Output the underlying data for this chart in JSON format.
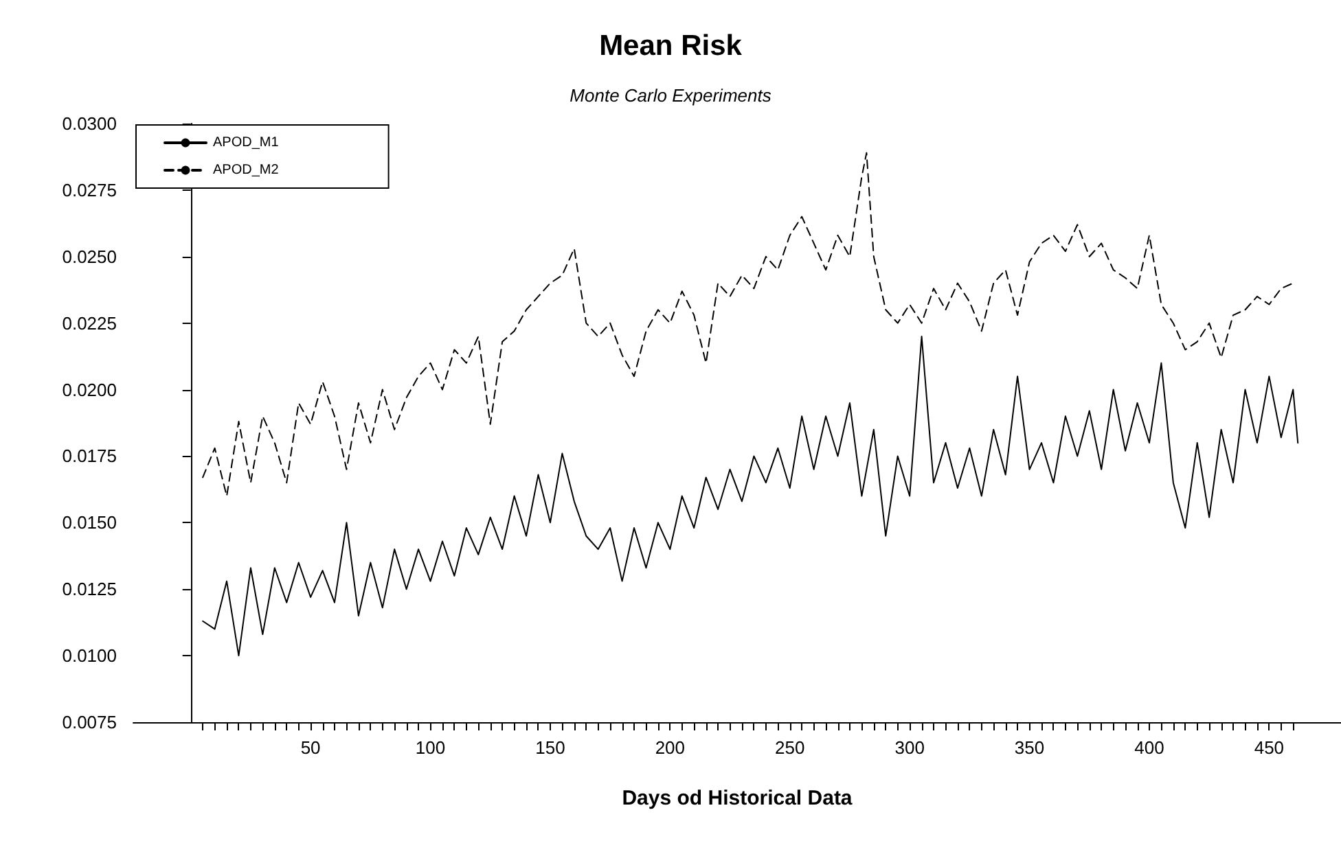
{
  "chart_data": {
    "type": "line",
    "title": "Mean Risk",
    "subtitle": "Monte Carlo Experiments",
    "xlabel": "Days od Historical Data",
    "xlim": [
      -24,
      480
    ],
    "ylim": [
      0.0075,
      0.03
    ],
    "yticks": [
      {
        "value": 0.0075,
        "label": "0.0075"
      },
      {
        "value": 0.01,
        "label": "0.0100"
      },
      {
        "value": 0.0125,
        "label": "0.0125"
      },
      {
        "value": 0.015,
        "label": "0.0150"
      },
      {
        "value": 0.0175,
        "label": "0.0175"
      },
      {
        "value": 0.02,
        "label": "0.0200"
      },
      {
        "value": 0.0225,
        "label": "0.0225"
      },
      {
        "value": 0.025,
        "label": "0.0250"
      },
      {
        "value": 0.0275,
        "label": "0.0275"
      },
      {
        "value": 0.03,
        "label": "0.0300"
      }
    ],
    "xticks": [
      {
        "value": 5,
        "label": null
      },
      {
        "value": 10,
        "label": null
      },
      {
        "value": 15,
        "label": null
      },
      {
        "value": 20,
        "label": null
      },
      {
        "value": 25,
        "label": null
      },
      {
        "value": 30,
        "label": null
      },
      {
        "value": 35,
        "label": null
      },
      {
        "value": 40,
        "label": null
      },
      {
        "value": 45,
        "label": null
      },
      50,
      {
        "value": 55,
        "label": null
      },
      {
        "value": 60,
        "label": null
      },
      {
        "value": 65,
        "label": null
      },
      {
        "value": 70,
        "label": null
      },
      {
        "value": 75,
        "label": null
      },
      {
        "value": 80,
        "label": null
      },
      {
        "value": 85,
        "label": null
      },
      {
        "value": 90,
        "label": null
      },
      {
        "value": 95,
        "label": null
      },
      100,
      {
        "value": 105,
        "label": null
      },
      {
        "value": 110,
        "label": null
      },
      {
        "value": 115,
        "label": null
      },
      {
        "value": 120,
        "label": null
      },
      {
        "value": 125,
        "label": null
      },
      {
        "value": 130,
        "label": null
      },
      {
        "value": 135,
        "label": null
      },
      {
        "value": 140,
        "label": null
      },
      {
        "value": 145,
        "label": null
      },
      150,
      {
        "value": 155,
        "label": null
      },
      {
        "value": 160,
        "label": null
      },
      {
        "value": 165,
        "label": null
      },
      {
        "value": 170,
        "label": null
      },
      {
        "value": 175,
        "label": null
      },
      {
        "value": 180,
        "label": null
      },
      {
        "value": 185,
        "label": null
      },
      {
        "value": 190,
        "label": null
      },
      {
        "value": 195,
        "label": null
      },
      200,
      {
        "value": 205,
        "label": null
      },
      {
        "value": 210,
        "label": null
      },
      {
        "value": 215,
        "label": null
      },
      {
        "value": 220,
        "label": null
      },
      {
        "value": 225,
        "label": null
      },
      {
        "value": 230,
        "label": null
      },
      {
        "value": 235,
        "label": null
      },
      {
        "value": 240,
        "label": null
      },
      {
        "value": 245,
        "label": null
      },
      250,
      {
        "value": 255,
        "label": null
      },
      {
        "value": 260,
        "label": null
      },
      {
        "value": 265,
        "label": null
      },
      {
        "value": 270,
        "label": null
      },
      {
        "value": 275,
        "label": null
      },
      {
        "value": 280,
        "label": null
      },
      {
        "value": 285,
        "label": null
      },
      {
        "value": 290,
        "label": null
      },
      {
        "value": 295,
        "label": null
      },
      300,
      {
        "value": 305,
        "label": null
      },
      {
        "value": 310,
        "label": null
      },
      {
        "value": 315,
        "label": null
      },
      {
        "value": 320,
        "label": null
      },
      {
        "value": 325,
        "label": null
      },
      {
        "value": 330,
        "label": null
      },
      {
        "value": 335,
        "label": null
      },
      {
        "value": 340,
        "label": null
      },
      {
        "value": 345,
        "label": null
      },
      350,
      {
        "value": 355,
        "label": null
      },
      {
        "value": 360,
        "label": null
      },
      {
        "value": 365,
        "label": null
      },
      {
        "value": 370,
        "label": null
      },
      {
        "value": 375,
        "label": null
      },
      {
        "value": 380,
        "label": null
      },
      {
        "value": 385,
        "label": null
      },
      {
        "value": 390,
        "label": null
      },
      {
        "value": 395,
        "label": null
      },
      400,
      {
        "value": 405,
        "label": null
      },
      {
        "value": 410,
        "label": null
      },
      {
        "value": 415,
        "label": null
      },
      {
        "value": 420,
        "label": null
      },
      {
        "value": 425,
        "label": null
      },
      {
        "value": 430,
        "label": null
      },
      {
        "value": 435,
        "label": null
      },
      {
        "value": 440,
        "label": null
      },
      {
        "value": 445,
        "label": null
      },
      450,
      {
        "value": 455,
        "label": null
      },
      {
        "value": 460,
        "label": null
      }
    ],
    "legend": "top left",
    "grid": false,
    "marker": "none",
    "series": [
      {
        "name": "APOD_M1",
        "color": "#000000",
        "line_style": "solid",
        "x": [
          5,
          10,
          15,
          20,
          25,
          30,
          35,
          40,
          45,
          50,
          55,
          60,
          65,
          70,
          75,
          80,
          85,
          90,
          95,
          100,
          105,
          110,
          115,
          120,
          125,
          130,
          135,
          140,
          145,
          150,
          155,
          160,
          165,
          170,
          175,
          180,
          185,
          190,
          195,
          200,
          205,
          210,
          215,
          220,
          225,
          230,
          235,
          240,
          245,
          250,
          255,
          260,
          265,
          270,
          275,
          280,
          285,
          290,
          295,
          300,
          305,
          310,
          315,
          320,
          325,
          330,
          335,
          340,
          345,
          350,
          355,
          360,
          365,
          370,
          375,
          380,
          385,
          390,
          395,
          400,
          405,
          410,
          415,
          420,
          425,
          430,
          435,
          440,
          445,
          450,
          455,
          460,
          462
        ],
        "values": [
          0.0113,
          0.011,
          0.0128,
          0.01,
          0.0133,
          0.0108,
          0.0133,
          0.012,
          0.0135,
          0.0122,
          0.0132,
          0.012,
          0.015,
          0.0115,
          0.0135,
          0.0118,
          0.014,
          0.0125,
          0.014,
          0.0128,
          0.0143,
          0.013,
          0.0148,
          0.0138,
          0.0152,
          0.014,
          0.016,
          0.0145,
          0.0168,
          0.015,
          0.0176,
          0.0158,
          0.0145,
          0.014,
          0.0148,
          0.0128,
          0.0148,
          0.0133,
          0.015,
          0.014,
          0.016,
          0.0148,
          0.0167,
          0.0155,
          0.017,
          0.0158,
          0.0175,
          0.0165,
          0.0178,
          0.0163,
          0.019,
          0.017,
          0.019,
          0.0175,
          0.0195,
          0.016,
          0.0185,
          0.0145,
          0.0175,
          0.016,
          0.022,
          0.0165,
          0.018,
          0.0163,
          0.0178,
          0.016,
          0.0185,
          0.0168,
          0.0205,
          0.017,
          0.018,
          0.0165,
          0.019,
          0.0175,
          0.0192,
          0.017,
          0.02,
          0.0177,
          0.0195,
          0.018,
          0.021,
          0.0165,
          0.0148,
          0.018,
          0.0152,
          0.0185,
          0.0165,
          0.02,
          0.018,
          0.0205,
          0.0182,
          0.02,
          0.018
        ]
      },
      {
        "name": "APOD_M2",
        "color": "#000000",
        "line_style": "dashed",
        "x": [
          5,
          10,
          15,
          20,
          25,
          30,
          35,
          40,
          45,
          50,
          55,
          60,
          65,
          70,
          75,
          80,
          85,
          90,
          95,
          100,
          105,
          110,
          115,
          120,
          125,
          130,
          135,
          140,
          145,
          150,
          155,
          160,
          165,
          170,
          175,
          180,
          185,
          190,
          195,
          200,
          205,
          210,
          215,
          220,
          225,
          230,
          235,
          240,
          245,
          250,
          255,
          260,
          265,
          270,
          275,
          280,
          282,
          285,
          290,
          295,
          300,
          305,
          310,
          315,
          320,
          325,
          330,
          335,
          340,
          345,
          350,
          355,
          360,
          365,
          370,
          375,
          380,
          385,
          390,
          395,
          400,
          405,
          410,
          415,
          420,
          425,
          430,
          435,
          440,
          445,
          450,
          455,
          460
        ],
        "values": [
          0.0167,
          0.0178,
          0.016,
          0.0188,
          0.0165,
          0.019,
          0.018,
          0.0165,
          0.0195,
          0.0187,
          0.0203,
          0.019,
          0.017,
          0.0195,
          0.018,
          0.02,
          0.0185,
          0.0197,
          0.0205,
          0.021,
          0.02,
          0.0215,
          0.021,
          0.022,
          0.0187,
          0.0218,
          0.0222,
          0.023,
          0.0235,
          0.024,
          0.0243,
          0.0253,
          0.0225,
          0.022,
          0.0225,
          0.0213,
          0.0205,
          0.0222,
          0.023,
          0.0225,
          0.0237,
          0.0228,
          0.021,
          0.024,
          0.0235,
          0.0243,
          0.0238,
          0.025,
          0.0245,
          0.0258,
          0.0265,
          0.0255,
          0.0245,
          0.0258,
          0.025,
          0.028,
          0.0289,
          0.025,
          0.023,
          0.0225,
          0.0232,
          0.0225,
          0.0238,
          0.023,
          0.024,
          0.0233,
          0.0222,
          0.024,
          0.0245,
          0.0228,
          0.0248,
          0.0255,
          0.0258,
          0.0252,
          0.0262,
          0.025,
          0.0255,
          0.0245,
          0.0242,
          0.0238,
          0.0258,
          0.0232,
          0.0225,
          0.0215,
          0.0218,
          0.0225,
          0.0212,
          0.0228,
          0.023,
          0.0235,
          0.0232,
          0.0238,
          0.024
        ]
      }
    ]
  }
}
